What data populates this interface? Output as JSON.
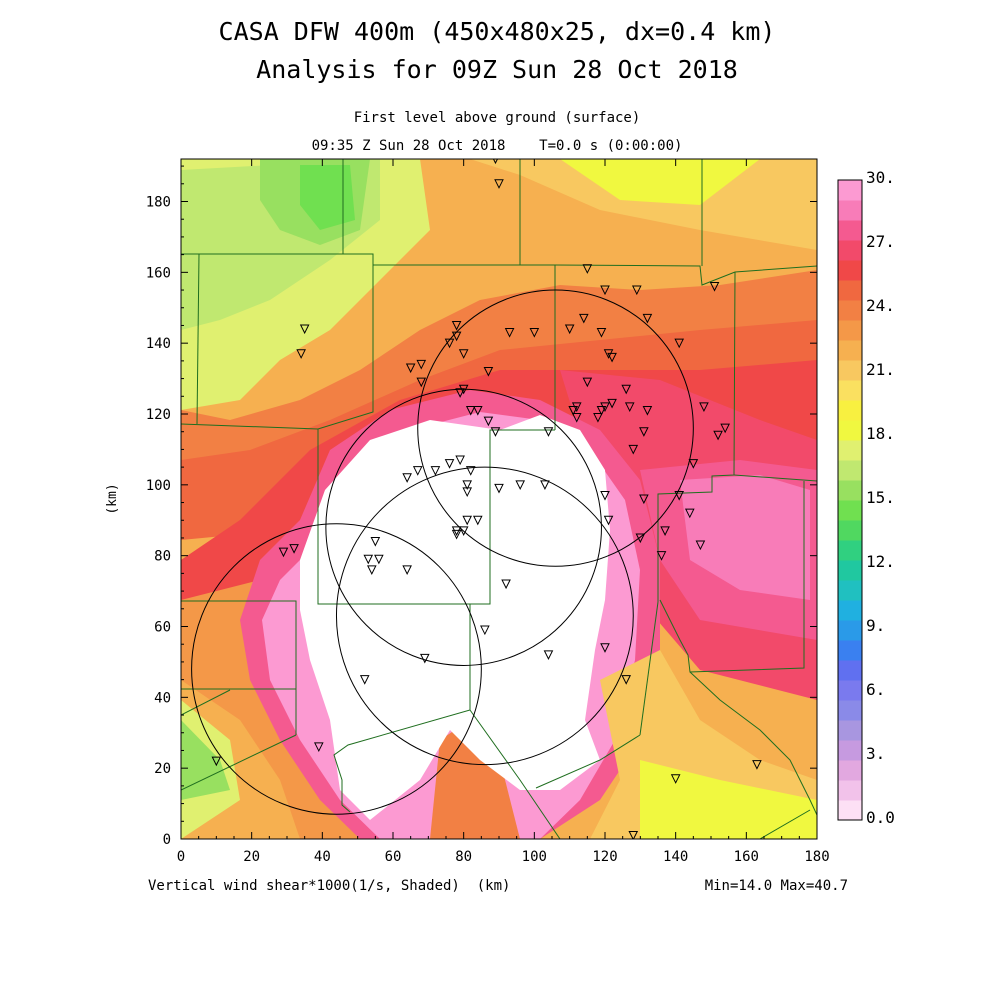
{
  "title": {
    "line1": "CASA DFW 400m (450x480x25, dx=0.4 km)",
    "line2": "Analysis for 09Z Sun 28 Oct 2018"
  },
  "subtitle": {
    "level": "First level above ground (surface)",
    "time": "09:35 Z Sun 28 Oct 2018    T=0.0 s (0:00:00)"
  },
  "footer": {
    "variable": "Vertical wind shear*1000(1/s, Shaded)  (km)",
    "minmax": "Min=14.0 Max=40.7"
  },
  "chart_data": {
    "type": "heatmap",
    "xlabel": "(km)",
    "ylabel": "(km)",
    "xlim": [
      0,
      180
    ],
    "ylim": [
      0,
      192
    ],
    "x_ticks": [
      "0",
      "20",
      "40",
      "60",
      "80",
      "100",
      "120",
      "140",
      "160",
      "180"
    ],
    "y_ticks": [
      "0",
      "20",
      "40",
      "60",
      "80",
      "100",
      "120",
      "140",
      "160",
      "180"
    ],
    "colorbar": {
      "labels": [
        "0.0",
        "3.",
        "6.",
        "9.",
        "12.",
        "15.",
        "18.",
        "21.",
        "24.",
        "27.",
        "30."
      ],
      "colors": [
        "#fde0f5",
        "#f2c2ea",
        "#e2a8e0",
        "#c69ae0",
        "#a896e0",
        "#8a8ae8",
        "#7a7aee",
        "#6070f0",
        "#3a80f0",
        "#2a9ae8",
        "#20b0e0",
        "#20c0c0",
        "#20c8a0",
        "#30d080",
        "#50d860",
        "#70e050",
        "#98e060",
        "#c0e870",
        "#e0f070",
        "#f0f840",
        "#f8f040",
        "#fae060",
        "#f8c860",
        "#f6b050",
        "#f49848",
        "#f28044",
        "#f06840",
        "#f04848",
        "#f24a6a",
        "#f45a90",
        "#f87cb8",
        "#fc9ad2"
      ]
    },
    "radar_circles": [
      {
        "cx": 80,
        "cy": 88,
        "r": 39
      },
      {
        "cx": 106,
        "cy": 116,
        "r": 39
      },
      {
        "cx": 44,
        "cy": 48,
        "r": 41
      },
      {
        "cx": 86,
        "cy": 63,
        "r": 42
      }
    ],
    "stations": [
      [
        89,
        192
      ],
      [
        90,
        185
      ],
      [
        115,
        161
      ],
      [
        129,
        155
      ],
      [
        151,
        156
      ],
      [
        35,
        144
      ],
      [
        34,
        137
      ],
      [
        78,
        145
      ],
      [
        78,
        142
      ],
      [
        80,
        137
      ],
      [
        76,
        140
      ],
      [
        93,
        143
      ],
      [
        68,
        134
      ],
      [
        110,
        144
      ],
      [
        114,
        147
      ],
      [
        119,
        143
      ],
      [
        121,
        137
      ],
      [
        122,
        136
      ],
      [
        126,
        127
      ],
      [
        132,
        147
      ],
      [
        141,
        140
      ],
      [
        120,
        155
      ],
      [
        100,
        143
      ],
      [
        65,
        133
      ],
      [
        87,
        132
      ],
      [
        68,
        129
      ],
      [
        80,
        127
      ],
      [
        79,
        126
      ],
      [
        82,
        121
      ],
      [
        84,
        121
      ],
      [
        87,
        118
      ],
      [
        89,
        115
      ],
      [
        104,
        115
      ],
      [
        112,
        122
      ],
      [
        111,
        121
      ],
      [
        112,
        119
      ],
      [
        115,
        129
      ],
      [
        118,
        119
      ],
      [
        120,
        122
      ],
      [
        119,
        121
      ],
      [
        122,
        123
      ],
      [
        127,
        122
      ],
      [
        132,
        121
      ],
      [
        131,
        115
      ],
      [
        128,
        110
      ],
      [
        148,
        122
      ],
      [
        152,
        114
      ],
      [
        154,
        116
      ],
      [
        145,
        106
      ],
      [
        141,
        97
      ],
      [
        144,
        92
      ],
      [
        147,
        83
      ],
      [
        137,
        87
      ],
      [
        130,
        85
      ],
      [
        136,
        80
      ],
      [
        121,
        90
      ],
      [
        120,
        97
      ],
      [
        131,
        96
      ],
      [
        103,
        100
      ],
      [
        96,
        100
      ],
      [
        90,
        99
      ],
      [
        81,
        100
      ],
      [
        81,
        98
      ],
      [
        82,
        104
      ],
      [
        79,
        107
      ],
      [
        76,
        106
      ],
      [
        72,
        104
      ],
      [
        67,
        104
      ],
      [
        64,
        102
      ],
      [
        78,
        86
      ],
      [
        80,
        87
      ],
      [
        81,
        90
      ],
      [
        78,
        87
      ],
      [
        84,
        90
      ],
      [
        55,
        84
      ],
      [
        53,
        79
      ],
      [
        56,
        79
      ],
      [
        54,
        76
      ],
      [
        64,
        76
      ],
      [
        92,
        72
      ],
      [
        86,
        59
      ],
      [
        69,
        51
      ],
      [
        104,
        52
      ],
      [
        120,
        54
      ],
      [
        126,
        45
      ],
      [
        52,
        45
      ],
      [
        39,
        26
      ],
      [
        10,
        22
      ],
      [
        29,
        81
      ],
      [
        32,
        82
      ],
      [
        140,
        17
      ],
      [
        163,
        21
      ],
      [
        128,
        1
      ]
    ]
  }
}
